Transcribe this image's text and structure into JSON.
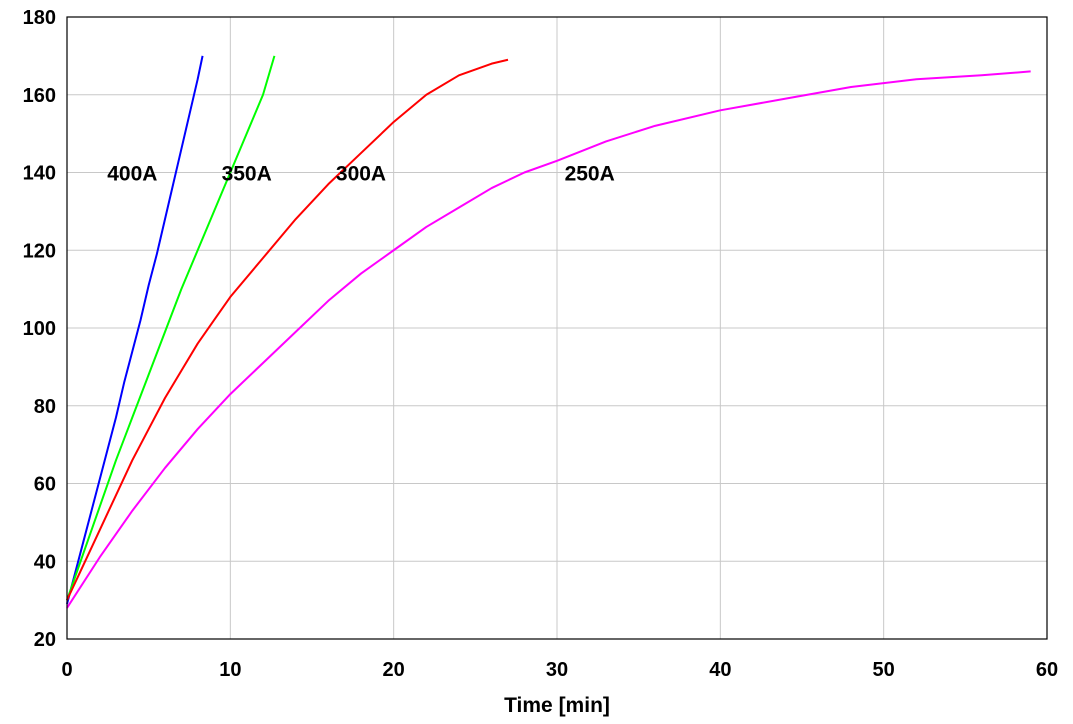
{
  "chart_data": {
    "type": "line",
    "title": "",
    "xlabel": "Time [min]",
    "ylabel": "",
    "xlim": [
      0,
      60
    ],
    "ylim": [
      20,
      180
    ],
    "xticks": [
      0,
      10,
      20,
      30,
      40,
      50,
      60
    ],
    "yticks": [
      20,
      40,
      60,
      80,
      100,
      120,
      140,
      160,
      180
    ],
    "grid": true,
    "legend": "none",
    "series": [
      {
        "name": "400A",
        "color": "#0000ff",
        "x": [
          0,
          0.5,
          1,
          1.5,
          2,
          2.5,
          3,
          3.5,
          4,
          4.5,
          5,
          5.5,
          6,
          6.5,
          7,
          7.5,
          8,
          8.3
        ],
        "y": [
          29,
          37,
          45,
          53,
          61,
          69,
          77,
          86,
          94,
          102,
          111,
          119,
          128,
          137,
          146,
          155,
          164,
          170
        ]
      },
      {
        "name": "350A",
        "color": "#00ff00",
        "x": [
          0,
          1,
          2,
          3,
          4,
          5,
          6,
          7,
          8,
          9,
          10,
          11,
          12,
          12.7
        ],
        "y": [
          30,
          42,
          54,
          66,
          77,
          88,
          99,
          110,
          120,
          130,
          140,
          150,
          160,
          170
        ]
      },
      {
        "name": "300A",
        "color": "#ff0000",
        "x": [
          0,
          1,
          2,
          3,
          4,
          5,
          6,
          7,
          8,
          9,
          10,
          12,
          14,
          16,
          18,
          20,
          22,
          24,
          26,
          27
        ],
        "y": [
          30,
          39,
          48,
          57,
          66,
          74,
          82,
          89,
          96,
          102,
          108,
          118,
          128,
          137,
          145,
          153,
          160,
          165,
          168,
          169
        ]
      },
      {
        "name": "250A",
        "color": "#ff00ff",
        "x": [
          0,
          2,
          4,
          6,
          8,
          10,
          12,
          14,
          16,
          18,
          20,
          22,
          24,
          26,
          28,
          30,
          33,
          36,
          40,
          44,
          48,
          52,
          56,
          59
        ],
        "y": [
          28,
          41,
          53,
          64,
          74,
          83,
          91,
          99,
          107,
          114,
          120,
          126,
          131,
          136,
          140,
          143,
          148,
          152,
          156,
          159,
          162,
          164,
          165,
          166
        ]
      }
    ],
    "annotations": [
      {
        "text": "400A",
        "x": 4,
        "y": 140
      },
      {
        "text": "350A",
        "x": 11,
        "y": 140
      },
      {
        "text": "300A",
        "x": 18,
        "y": 140
      },
      {
        "text": "250A",
        "x": 32,
        "y": 140
      }
    ]
  }
}
